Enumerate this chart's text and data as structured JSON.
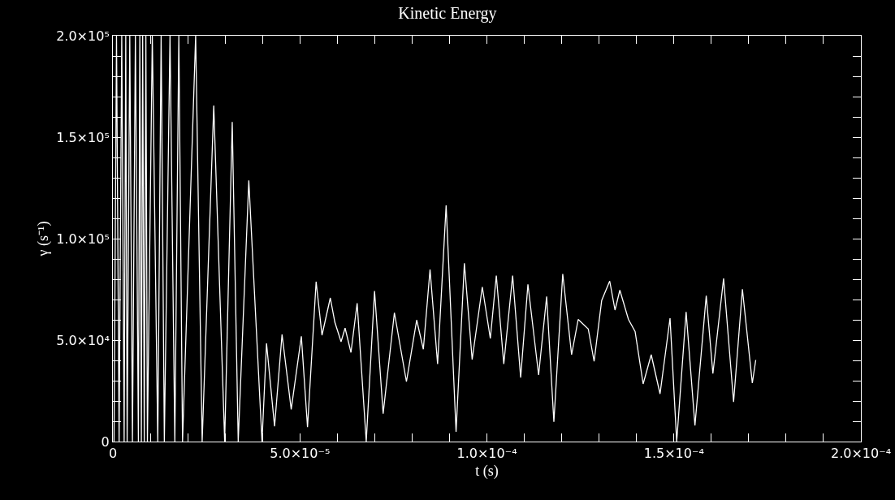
{
  "chart_data": {
    "type": "line",
    "title": "Kinetic Energy",
    "xlabel": "t (s)",
    "ylabel": "γ (s⁻¹)",
    "color": "#ffffff",
    "grid": false,
    "xlim": [
      0,
      0.0002
    ],
    "xticks": [
      {
        "value": 0,
        "label": "0"
      },
      {
        "value": 1e-05,
        "label": null
      },
      {
        "value": 2e-05,
        "label": null
      },
      {
        "value": 3e-05,
        "label": null
      },
      {
        "value": 4e-05,
        "label": null
      },
      {
        "value": 5e-05,
        "label": "5.0×10⁻⁵"
      },
      {
        "value": 6e-05,
        "label": null
      },
      {
        "value": 7e-05,
        "label": null
      },
      {
        "value": 8e-05,
        "label": null
      },
      {
        "value": 9e-05,
        "label": null
      },
      {
        "value": 0.0001,
        "label": "1.0×10⁻⁴"
      },
      {
        "value": 0.00011,
        "label": null
      },
      {
        "value": 0.00012,
        "label": null
      },
      {
        "value": 0.00013,
        "label": null
      },
      {
        "value": 0.00014,
        "label": null
      },
      {
        "value": 0.00015,
        "label": "1.5×10⁻⁴"
      },
      {
        "value": 0.00016,
        "label": null
      },
      {
        "value": 0.00017,
        "label": null
      },
      {
        "value": 0.00018,
        "label": null
      },
      {
        "value": 0.00019,
        "label": null
      },
      {
        "value": 0.0002,
        "label": "2.0×10⁻⁴"
      }
    ],
    "ylim": [
      0,
      200000
    ],
    "yticks": [
      0,
      {
        "value": 10000,
        "label": null
      },
      {
        "value": 20000,
        "label": null
      },
      {
        "value": 30000,
        "label": null
      },
      {
        "value": 40000,
        "label": null
      },
      {
        "value": 50000,
        "label": "5.0×10⁴"
      },
      {
        "value": 60000,
        "label": null
      },
      {
        "value": 70000,
        "label": null
      },
      {
        "value": 80000,
        "label": null
      },
      {
        "value": 90000,
        "label": null
      },
      {
        "value": 100000,
        "label": "1.0×10⁵"
      },
      {
        "value": 110000,
        "label": null
      },
      {
        "value": 120000,
        "label": null
      },
      {
        "value": 130000,
        "label": null
      },
      {
        "value": 140000,
        "label": null
      },
      {
        "value": 150000,
        "label": "1.5×10⁵"
      },
      {
        "value": 160000,
        "label": null
      },
      {
        "value": 170000,
        "label": null
      },
      {
        "value": 180000,
        "label": null
      },
      {
        "value": 190000,
        "label": null
      },
      {
        "value": 200000,
        "label": "2.0×10⁵"
      }
    ],
    "x": [
      3e-07,
      9.7e-07,
      1.66e-06,
      2.37e-06,
      3.01e-06,
      3.44e-06,
      3.81e-06,
      4.52e-06,
      5.23e-06,
      6.02e-06,
      6.82e-06,
      7.2e-06,
      7.61e-06,
      7.96e-06,
      8.39e-06,
      8.82e-06,
      9.23e-06,
      1.054e-05,
      1.2e-05,
      1.29e-05,
      1.376e-05,
      1.527e-05,
      1.656e-05,
      1.763e-05,
      1.862e-05,
      2.213e-05,
      2.387e-05,
      2.697e-05,
      2.989e-05,
      3.191e-05,
      3.351e-05,
      3.634e-05,
      3.987e-05,
      4.108e-05,
      4.323e-05,
      4.523e-05,
      4.768e-05,
      5.039e-05,
      5.204e-05,
      5.434e-05,
      5.591e-05,
      5.813e-05,
      5.935e-05,
      6.101e-05,
      6.209e-05,
      6.366e-05,
      6.531e-05,
      6.774e-05,
      6.996e-05,
      7.226e-05,
      7.527e-05,
      7.849e-05,
      8.123e-05,
      8.301e-05,
      8.48e-05,
      8.682e-05,
      8.91e-05,
      9.176e-05,
      9.398e-05,
      9.606e-05,
      9.877e-05,
      0.00010092,
      0.00010252,
      0.00010452,
      0.00010688,
      0.00010903,
      0.00011097,
      0.00011383,
      0.00011598,
      0.00011791,
      0.00012028,
      0.00012265,
      0.00012441,
      0.0001271,
      0.00012867,
      0.00013069,
      0.00013284,
      0.00013426,
      0.00013555,
      0.00013785,
      0.00013963,
      0.00014178,
      0.00014394,
      0.0001463,
      0.00014897,
      0.00015075,
      0.00015327,
      0.00015563,
      0.00015865,
      0.00016043,
      0.00016329,
      0.00016596,
      0.00016832,
      0.00017097,
      0.00017189
    ],
    "values": [
      0,
      200000,
      0,
      200000,
      0,
      200000,
      0,
      200000,
      0,
      200000,
      0,
      200000,
      0,
      200000,
      0,
      200000,
      0,
      200000,
      0,
      200000,
      0,
      200000,
      0,
      200000,
      0,
      200000,
      0,
      165600,
      0,
      157500,
      0,
      128700,
      0,
      48400,
      7480,
      52800,
      15880,
      51900,
      7080,
      78800,
      52400,
      70800,
      58800,
      49200,
      55900,
      43900,
      68200,
      0,
      74200,
      13760,
      63500,
      29500,
      59900,
      45500,
      84800,
      38200,
      116400,
      4800,
      87900,
      40400,
      76200,
      50800,
      81800,
      38200,
      81800,
      31500,
      77500,
      32800,
      71500,
      9760,
      82600,
      42800,
      60200,
      55500,
      39500,
      69500,
      79100,
      64800,
      74600,
      60200,
      54200,
      28400,
      42800,
      23500,
      60800,
      0,
      63900,
      7880,
      71900,
      33500,
      80400,
      19500,
      75100,
      28800,
      40200
    ]
  }
}
